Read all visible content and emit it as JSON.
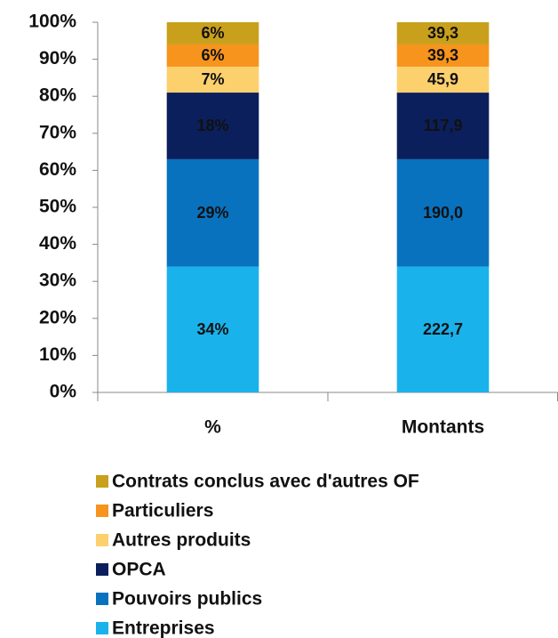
{
  "chart_data": {
    "type": "bar",
    "stacking": "percent",
    "categories": [
      "%",
      "Montants"
    ],
    "series": [
      {
        "name": "Entreprises",
        "color": "#1ab2eb",
        "values": [
          34,
          222.7
        ],
        "value_labels": [
          "34%",
          "222,7"
        ]
      },
      {
        "name": "Pouvoirs publics",
        "color": "#0872bf",
        "values": [
          29,
          190.0
        ],
        "value_labels": [
          "29%",
          "190,0"
        ]
      },
      {
        "name": "OPCA",
        "color": "#0b1f5c",
        "values": [
          18,
          117.9
        ],
        "value_labels": [
          "18%",
          "117,9"
        ]
      },
      {
        "name": "Autres produits",
        "color": "#fdd06e",
        "values": [
          7,
          45.9
        ],
        "value_labels": [
          "7%",
          "45,9"
        ]
      },
      {
        "name": "Particuliers",
        "color": "#f7941d",
        "values": [
          6,
          39.3
        ],
        "value_labels": [
          "6%",
          "39,3"
        ]
      },
      {
        "name": "Contrats conclus avec d'autres OF",
        "color": "#c9a01c",
        "values": [
          6,
          39.3
        ],
        "value_labels": [
          "6%",
          "39,3"
        ]
      }
    ],
    "ylim": [
      0,
      100
    ],
    "yticks": [
      {
        "value": 0,
        "label": "0%"
      },
      {
        "value": 10,
        "label": "10%"
      },
      {
        "value": 20,
        "label": "20%"
      },
      {
        "value": 30,
        "label": "30%"
      },
      {
        "value": 40,
        "label": "40%"
      },
      {
        "value": 50,
        "label": "50%"
      },
      {
        "value": 60,
        "label": "60%"
      },
      {
        "value": 70,
        "label": "70%"
      },
      {
        "value": 80,
        "label": "80%"
      },
      {
        "value": 90,
        "label": "90%"
      },
      {
        "value": 100,
        "label": "100%"
      }
    ],
    "grid": false,
    "legend": "bottom"
  }
}
